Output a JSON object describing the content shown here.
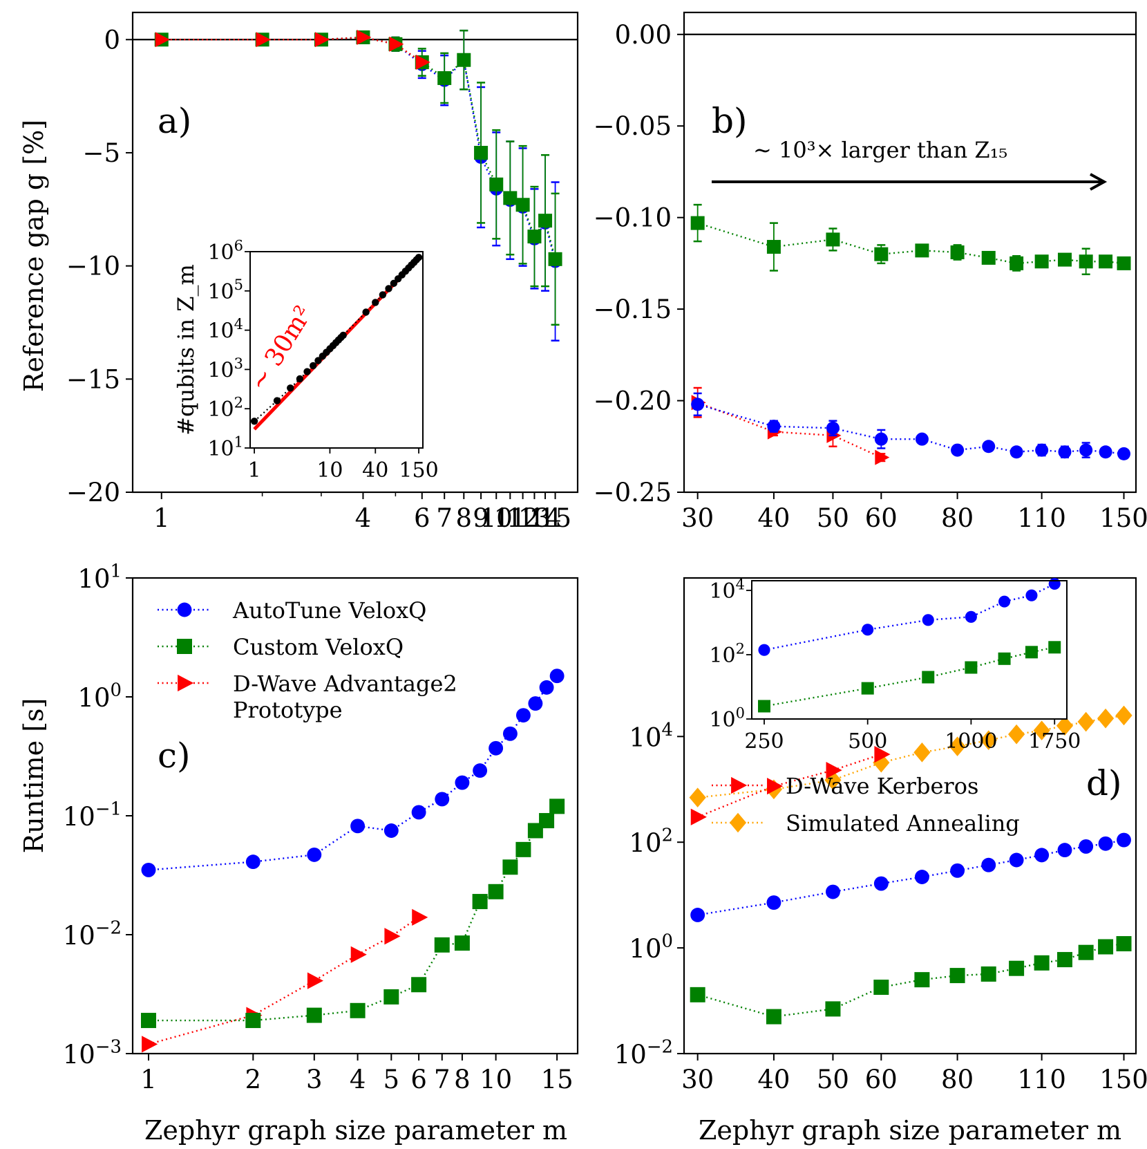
{
  "colors": {
    "autotune": "#0000ff",
    "custom": "#008000",
    "dwave": "#ff0000",
    "sa": "#ffa500",
    "axis": "#000000"
  },
  "legend": {
    "autotune": "AutoTune VeloxQ",
    "custom": "Custom VeloxQ",
    "adv2_line1": "D-Wave Advantage2",
    "adv2_line2": "Prototype",
    "kerberos": "D-Wave Kerberos",
    "sa": "Simulated Annealing"
  },
  "xlabel": "Zephyr graph size parameter m",
  "chart_data": [
    {
      "id": "a",
      "type": "line",
      "panel_label": "a)",
      "ylabel": "Reference gap g [%]",
      "xscale": "log",
      "xlim": [
        0.82,
        17.5
      ],
      "ylim": [
        -20,
        1.2
      ],
      "xticks": [
        1,
        4,
        6,
        7,
        8,
        9,
        10,
        11,
        12,
        13,
        14,
        15
      ],
      "xticklabels": [
        "1",
        "4",
        "6",
        "7",
        "8",
        "9",
        "10",
        "11",
        "12",
        "13",
        "14",
        "15"
      ],
      "xminor": [
        2,
        3,
        5
      ],
      "yticks": [
        0,
        -5,
        -10,
        -15,
        -20
      ],
      "yticklabels": [
        "0",
        "−5",
        "−10",
        "−15",
        "−20"
      ],
      "zero_line": true,
      "series": [
        {
          "name": "AutoTune VeloxQ",
          "color": "#0000ff",
          "marker": "circle",
          "x": [
            1,
            2,
            3,
            4,
            5,
            6,
            7,
            8,
            9,
            10,
            11,
            12,
            13,
            14,
            15
          ],
          "y": [
            0,
            0,
            0,
            0.1,
            -0.2,
            -1.1,
            -1.8,
            -0.9,
            -5.2,
            -6.6,
            -7.1,
            -7.4,
            -8.8,
            -8.1,
            -9.8
          ],
          "err": [
            0.1,
            0.1,
            0.1,
            0.1,
            0.3,
            0.6,
            1.1,
            1.3,
            3.1,
            2.5,
            2.6,
            2.6,
            2.2,
            3.0,
            3.5
          ]
        },
        {
          "name": "Custom VeloxQ",
          "color": "#008000",
          "marker": "square",
          "x": [
            1,
            2,
            3,
            4,
            5,
            6,
            7,
            8,
            9,
            10,
            11,
            12,
            13,
            14,
            15
          ],
          "y": [
            0,
            0,
            0,
            0.1,
            -0.2,
            -1.0,
            -1.7,
            -0.9,
            -5.0,
            -6.4,
            -7.0,
            -7.3,
            -8.7,
            -8.0,
            -9.7
          ],
          "err": [
            0.1,
            0.1,
            0.1,
            0.1,
            0.3,
            0.6,
            1.1,
            1.3,
            3.1,
            2.4,
            2.5,
            2.6,
            2.2,
            2.9,
            2.9
          ]
        },
        {
          "name": "D-Wave Advantage2 Prototype",
          "color": "#ff0000",
          "marker": "triangle",
          "x": [
            1,
            2,
            3,
            4,
            5,
            6
          ],
          "y": [
            0,
            0,
            0,
            0.1,
            -0.2,
            -1.0
          ],
          "err": []
        }
      ],
      "inset": {
        "ylabel": "#qubits in Z_m",
        "xticks": [
          1,
          10,
          40,
          150
        ],
        "yticks_exp": [
          1,
          2,
          3,
          4,
          5,
          6
        ],
        "annotation": "∼ 30m²",
        "x": [
          1,
          2,
          3,
          4,
          5,
          6,
          7,
          8,
          9,
          10,
          11,
          12,
          13,
          14,
          15,
          30,
          40,
          50,
          60,
          70,
          80,
          90,
          100,
          110,
          120,
          130,
          140,
          150
        ],
        "y": [
          48,
          160,
          336,
          576,
          880,
          1248,
          1680,
          2176,
          2736,
          3360,
          4048,
          4800,
          5616,
          6496,
          7440,
          28800,
          51040,
          79600,
          114480,
          155680,
          203200,
          257040,
          317200,
          383680,
          456480,
          535600,
          621040,
          712800
        ],
        "fit_label": "30m^2"
      }
    },
    {
      "id": "b",
      "type": "line",
      "panel_label": "b)",
      "annotation": "∼ 10³× larger than Z₁₅",
      "xscale": "log",
      "xlim": [
        28.5,
        157
      ],
      "ylim": [
        -0.25,
        0.012
      ],
      "xticks": [
        30,
        40,
        50,
        60,
        80,
        110,
        150
      ],
      "xticklabels": [
        "30",
        "40",
        "50",
        "60",
        "80",
        "110",
        "150"
      ],
      "yticks": [
        0.0,
        -0.05,
        -0.1,
        -0.15,
        -0.2,
        -0.25
      ],
      "yticklabels": [
        "0.00",
        "−0.05",
        "−0.10",
        "−0.15",
        "−0.20",
        "−0.25"
      ],
      "zero_line": true,
      "series": [
        {
          "name": "Custom VeloxQ",
          "color": "#008000",
          "marker": "square",
          "x": [
            30,
            40,
            50,
            60,
            70,
            80,
            90,
            100,
            110,
            120,
            130,
            140,
            150
          ],
          "y": [
            -0.103,
            -0.116,
            -0.112,
            -0.12,
            -0.118,
            -0.119,
            -0.122,
            -0.125,
            -0.124,
            -0.123,
            -0.124,
            -0.124,
            -0.125
          ],
          "err": [
            0.01,
            0.013,
            0.006,
            0.005,
            0.003,
            0.004,
            0.002,
            0.004,
            0.003,
            0.003,
            0.007,
            0.002,
            0.003
          ]
        },
        {
          "name": "AutoTune VeloxQ",
          "color": "#0000ff",
          "marker": "circle",
          "x": [
            30,
            40,
            50,
            60,
            70,
            80,
            90,
            100,
            110,
            120,
            130,
            140,
            150
          ],
          "y": [
            -0.202,
            -0.214,
            -0.215,
            -0.221,
            -0.221,
            -0.227,
            -0.225,
            -0.228,
            -0.227,
            -0.228,
            -0.227,
            -0.228,
            -0.229
          ],
          "err": [
            0.006,
            0.003,
            0.004,
            0.005,
            0.002,
            0.002,
            0.002,
            0.002,
            0.003,
            0.003,
            0.004,
            0.002,
            0.002
          ]
        },
        {
          "name": "D-Wave Kerberos",
          "color": "#ff0000",
          "marker": "triangle",
          "x": [
            30,
            40,
            50,
            60
          ],
          "y": [
            -0.201,
            -0.217,
            -0.219,
            -0.231
          ],
          "err": [
            0.008,
            0.002,
            0.006,
            0.002
          ]
        }
      ]
    },
    {
      "id": "c",
      "type": "line",
      "panel_label": "c)",
      "ylabel": "Runtime [s]",
      "xscale": "log",
      "yscale": "log",
      "xlim": [
        0.9,
        17.2
      ],
      "ylim_exp": [
        -3,
        1
      ],
      "xticks": [
        1,
        2,
        3,
        4,
        5,
        6,
        7,
        8,
        10,
        15
      ],
      "xticklabels": [
        "1",
        "2",
        "3",
        "4",
        "5",
        "6",
        "7",
        "8",
        "10",
        "15"
      ],
      "yticks_exp": [
        1,
        0,
        -1,
        -2,
        -3
      ],
      "series": [
        {
          "name": "AutoTune VeloxQ",
          "color": "#0000ff",
          "marker": "circle",
          "x": [
            1,
            2,
            3,
            4,
            5,
            6,
            7,
            8,
            9,
            10,
            11,
            12,
            13,
            14,
            15
          ],
          "y": [
            0.035,
            0.041,
            0.047,
            0.082,
            0.075,
            0.107,
            0.138,
            0.19,
            0.24,
            0.37,
            0.49,
            0.7,
            0.88,
            1.2,
            1.5
          ]
        },
        {
          "name": "Custom VeloxQ",
          "color": "#008000",
          "marker": "square",
          "x": [
            1,
            2,
            3,
            4,
            5,
            6,
            7,
            8,
            9,
            10,
            11,
            12,
            13,
            14,
            15
          ],
          "y": [
            0.0019,
            0.0019,
            0.0021,
            0.0023,
            0.003,
            0.0038,
            0.0082,
            0.0085,
            0.019,
            0.023,
            0.037,
            0.052,
            0.075,
            0.091,
            0.12
          ]
        },
        {
          "name": "D-Wave Advantage2 Prototype",
          "color": "#ff0000",
          "marker": "triangle",
          "x": [
            1,
            2,
            3,
            4,
            5,
            6
          ],
          "y": [
            0.0012,
            0.0021,
            0.0041,
            0.0068,
            0.0097,
            0.014
          ]
        }
      ]
    },
    {
      "id": "d",
      "type": "line",
      "panel_label": "d)",
      "xscale": "log",
      "yscale": "log",
      "xlim": [
        28.5,
        157
      ],
      "ylim_exp": [
        -2,
        7
      ],
      "xticks": [
        30,
        40,
        50,
        60,
        80,
        110,
        150
      ],
      "xticklabels": [
        "30",
        "40",
        "50",
        "60",
        "80",
        "110",
        "150"
      ],
      "yticks_exp": [
        4,
        2,
        0,
        -2
      ],
      "series": [
        {
          "name": "D-Wave Kerberos",
          "color": "#ff0000",
          "marker": "triangle",
          "x": [
            30,
            40,
            50,
            60
          ],
          "y": [
            300,
            1150,
            2300,
            4600
          ]
        },
        {
          "name": "Simulated Annealing",
          "color": "#ffa500",
          "marker": "diamond",
          "x": [
            30,
            40,
            50,
            60,
            70,
            80,
            90,
            100,
            110,
            120,
            130,
            140,
            150
          ],
          "y": [
            700,
            1000,
            1500,
            3200,
            5000,
            6500,
            8500,
            11000,
            13000,
            16000,
            19000,
            22000,
            25000
          ]
        },
        {
          "name": "AutoTune VeloxQ",
          "color": "#0000ff",
          "marker": "circle",
          "x": [
            30,
            40,
            50,
            60,
            70,
            80,
            90,
            100,
            110,
            120,
            130,
            140,
            150
          ],
          "y": [
            4.2,
            7.2,
            11.5,
            16.5,
            22,
            29,
            37,
            46,
            57,
            71,
            83,
            94,
            110
          ]
        },
        {
          "name": "Custom VeloxQ",
          "color": "#008000",
          "marker": "square",
          "x": [
            30,
            40,
            50,
            60,
            70,
            80,
            90,
            100,
            110,
            120,
            130,
            140,
            150
          ],
          "y": [
            0.13,
            0.05,
            0.07,
            0.18,
            0.25,
            0.3,
            0.32,
            0.41,
            0.52,
            0.6,
            0.82,
            1.05,
            1.2
          ]
        }
      ],
      "inset": {
        "xticks": [
          250,
          500,
          1000,
          1750
        ],
        "yticks_exp": [
          4,
          2,
          0
        ],
        "series": [
          {
            "name": "AutoTune VeloxQ",
            "color": "#0000ff",
            "marker": "circle",
            "x": [
              250,
              500,
              750,
              1000,
              1250,
              1500,
              1750
            ],
            "y": [
              140,
              600,
              1200,
              1500,
              4500,
              7000,
              16000
            ]
          },
          {
            "name": "Custom VeloxQ",
            "color": "#008000",
            "marker": "square",
            "x": [
              250,
              500,
              750,
              1000,
              1250,
              1500,
              1750
            ],
            "y": [
              2.5,
              9,
              20,
              40,
              75,
              120,
              170
            ]
          }
        ]
      }
    }
  ]
}
